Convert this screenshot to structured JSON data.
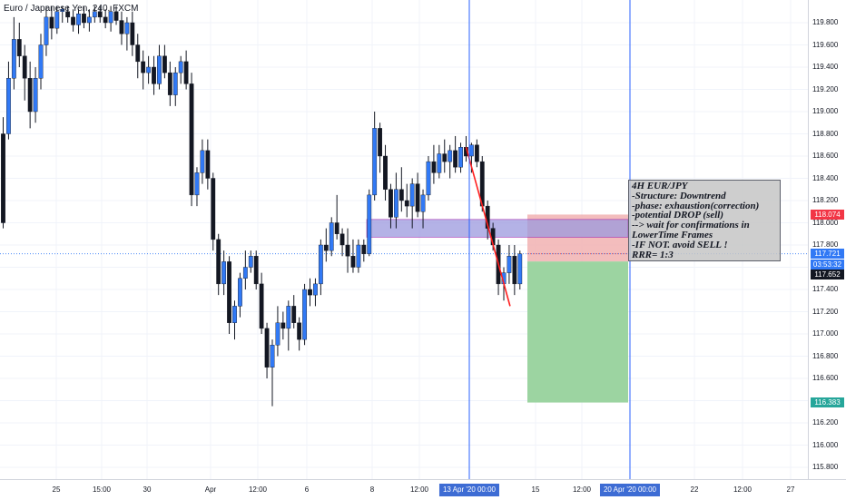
{
  "header": {
    "symbol_title": "Euro / Japanese Yen, 240, FXCM"
  },
  "colors": {
    "up_candle": "#3179f5",
    "down_candle": "#131722",
    "crosshair": "#2962ff",
    "trendline": "#ff1f1f",
    "zone_fill": "#9c99de",
    "stop_fill": "#f2b6b6",
    "target_fill": "#97d29c"
  },
  "price_axis": {
    "ticks": [
      "119.800",
      "119.600",
      "119.400",
      "119.200",
      "119.000",
      "118.800",
      "118.600",
      "118.400",
      "118.200",
      "118.000",
      "117.800",
      "117.600",
      "117.400",
      "117.200",
      "117.000",
      "116.800",
      "116.600",
      "116.400",
      "116.200",
      "116.000",
      "115.800"
    ],
    "badges": {
      "stop": {
        "text": "118.074",
        "color": "#f23645"
      },
      "current": {
        "text": "117.721",
        "color": "#3179f5"
      },
      "countdown": {
        "text": "03:53:32",
        "color": "#3179f5"
      },
      "entry": {
        "text": "117.652",
        "color": "#131722"
      },
      "target": {
        "text": "116.383",
        "color": "#26a69a"
      }
    }
  },
  "time_axis": {
    "ticks": [
      "25",
      "15:00",
      "30",
      "Apr",
      "12:00",
      "6",
      "8",
      "12:00",
      "15",
      "12:00",
      "22",
      "12:00",
      "27"
    ],
    "badge_left": "13 Apr '20   00:00",
    "badge_right": "20 Apr '20   00:00"
  },
  "annotation": {
    "lines": [
      "4H EUR/JPY",
      "-Structure: Downtrend",
      "-phase: exhaustion(correction)",
      "-potential DROP (sell)",
      "--> wait for confirmations in",
      "LowerTime Frames",
      "-IF NOT. avoid SELL !",
      "RRR= 1:3"
    ]
  },
  "chart_data": {
    "type": "candlestick",
    "ylim": [
      115.7,
      119.95
    ],
    "candles": [
      [
        118.8,
        118.95,
        117.95,
        118.0
      ],
      [
        118.8,
        119.45,
        118.75,
        119.3
      ],
      [
        119.3,
        119.85,
        119.2,
        119.65
      ],
      [
        119.65,
        119.8,
        119.4,
        119.5
      ],
      [
        119.5,
        119.6,
        119.1,
        119.3
      ],
      [
        119.3,
        119.45,
        118.85,
        119.0
      ],
      [
        119.0,
        119.4,
        118.9,
        119.3
      ],
      [
        119.3,
        119.7,
        119.2,
        119.6
      ],
      [
        119.6,
        119.95,
        119.5,
        119.85
      ],
      [
        119.85,
        119.95,
        119.65,
        119.75
      ],
      [
        119.75,
        119.95,
        119.7,
        119.9
      ],
      [
        119.9,
        119.95,
        119.8,
        119.92
      ],
      [
        119.9,
        119.95,
        119.8,
        119.85
      ],
      [
        119.85,
        119.92,
        119.72,
        119.78
      ],
      [
        119.78,
        119.92,
        119.7,
        119.88
      ],
      [
        119.88,
        119.95,
        119.75,
        119.8
      ],
      [
        119.8,
        119.92,
        119.72,
        119.85
      ],
      [
        119.85,
        119.95,
        119.8,
        119.9
      ],
      [
        119.9,
        119.95,
        119.8,
        119.85
      ],
      [
        119.85,
        119.92,
        119.75,
        119.8
      ],
      [
        119.8,
        119.95,
        119.72,
        119.9
      ],
      [
        119.9,
        119.95,
        119.78,
        119.82
      ],
      [
        119.82,
        119.9,
        119.6,
        119.7
      ],
      [
        119.7,
        119.85,
        119.55,
        119.8
      ],
      [
        119.8,
        119.9,
        119.5,
        119.6
      ],
      [
        119.6,
        119.7,
        119.3,
        119.45
      ],
      [
        119.45,
        119.55,
        119.2,
        119.35
      ],
      [
        119.35,
        119.5,
        119.25,
        119.4
      ],
      [
        119.4,
        119.5,
        119.15,
        119.25
      ],
      [
        119.25,
        119.6,
        119.2,
        119.5
      ],
      [
        119.5,
        119.6,
        119.3,
        119.35
      ],
      [
        119.35,
        119.45,
        119.05,
        119.15
      ],
      [
        119.15,
        119.4,
        119.05,
        119.35
      ],
      [
        119.35,
        119.5,
        119.25,
        119.45
      ],
      [
        119.45,
        119.55,
        119.2,
        119.25
      ],
      [
        119.25,
        119.35,
        118.15,
        118.25
      ],
      [
        118.25,
        118.5,
        118.15,
        118.45
      ],
      [
        118.45,
        118.75,
        118.35,
        118.65
      ],
      [
        118.65,
        118.75,
        118.3,
        118.4
      ],
      [
        118.4,
        118.45,
        117.75,
        117.85
      ],
      [
        117.85,
        117.9,
        117.35,
        117.45
      ],
      [
        117.45,
        117.75,
        117.35,
        117.65
      ],
      [
        117.65,
        117.7,
        117.0,
        117.1
      ],
      [
        117.1,
        117.3,
        116.95,
        117.25
      ],
      [
        117.25,
        117.55,
        117.15,
        117.5
      ],
      [
        117.5,
        117.75,
        117.4,
        117.6
      ],
      [
        117.6,
        117.75,
        117.55,
        117.7
      ],
      [
        117.7,
        117.75,
        117.4,
        117.45
      ],
      [
        117.45,
        117.55,
        117.0,
        117.05
      ],
      [
        117.05,
        117.1,
        116.6,
        116.7
      ],
      [
        116.7,
        116.95,
        116.35,
        116.9
      ],
      [
        116.9,
        117.25,
        116.8,
        117.1
      ],
      [
        117.1,
        117.2,
        116.95,
        117.05
      ],
      [
        117.05,
        117.3,
        116.85,
        117.25
      ],
      [
        117.25,
        117.35,
        117.05,
        117.1
      ],
      [
        117.1,
        117.15,
        116.85,
        116.95
      ],
      [
        116.95,
        117.45,
        116.9,
        117.4
      ],
      [
        117.4,
        117.5,
        117.25,
        117.35
      ],
      [
        117.35,
        117.5,
        117.25,
        117.45
      ],
      [
        117.45,
        117.85,
        117.35,
        117.8
      ],
      [
        117.8,
        117.95,
        117.65,
        117.75
      ],
      [
        117.75,
        118.05,
        117.7,
        118.0
      ],
      [
        118.0,
        118.25,
        117.85,
        117.9
      ],
      [
        117.9,
        117.95,
        117.7,
        117.8
      ],
      [
        117.8,
        117.95,
        117.55,
        117.7
      ],
      [
        117.7,
        117.85,
        117.55,
        117.6
      ],
      [
        117.6,
        117.85,
        117.55,
        117.8
      ],
      [
        117.8,
        117.85,
        117.65,
        117.72
      ],
      [
        117.72,
        118.3,
        117.7,
        118.25
      ],
      [
        118.25,
        119.0,
        118.2,
        118.85
      ],
      [
        118.85,
        118.9,
        118.45,
        118.6
      ],
      [
        118.6,
        118.7,
        118.2,
        118.3
      ],
      [
        118.3,
        118.35,
        117.95,
        118.05
      ],
      [
        118.05,
        118.45,
        117.95,
        118.3
      ],
      [
        118.3,
        118.5,
        118.1,
        118.2
      ],
      [
        118.2,
        118.35,
        118.05,
        118.15
      ],
      [
        118.15,
        118.4,
        117.95,
        118.35
      ],
      [
        118.35,
        118.45,
        118.05,
        118.1
      ],
      [
        118.1,
        118.3,
        117.95,
        118.25
      ],
      [
        118.25,
        118.6,
        118.2,
        118.55
      ],
      [
        118.55,
        118.7,
        118.35,
        118.45
      ],
      [
        118.45,
        118.7,
        118.4,
        118.62
      ],
      [
        118.62,
        118.75,
        118.45,
        118.55
      ],
      [
        118.55,
        118.7,
        118.4,
        118.65
      ],
      [
        118.65,
        118.78,
        118.45,
        118.5
      ],
      [
        118.5,
        118.72,
        118.45,
        118.68
      ],
      [
        118.68,
        118.78,
        118.55,
        118.6
      ],
      [
        118.6,
        118.72,
        118.45,
        118.7
      ],
      [
        118.7,
        118.75,
        118.5,
        118.55
      ],
      [
        118.55,
        118.6,
        118.1,
        118.15
      ],
      [
        118.15,
        118.2,
        117.85,
        117.95
      ],
      [
        117.95,
        118.0,
        117.75,
        117.8
      ],
      [
        117.8,
        117.85,
        117.35,
        117.45
      ],
      [
        117.45,
        117.6,
        117.3,
        117.55
      ],
      [
        117.55,
        117.8,
        117.45,
        117.7
      ],
      [
        117.7,
        117.8,
        117.35,
        117.45
      ],
      [
        117.45,
        117.75,
        117.4,
        117.72
      ]
    ],
    "trade": {
      "entry": 117.652,
      "stop": 118.074,
      "target": 116.383,
      "current": 117.721
    },
    "zone": {
      "low": 117.87,
      "high": 118.03
    },
    "trendline": {
      "from_index": 86,
      "from_price": 118.68,
      "to_index": 94,
      "to_price": 117.25
    }
  }
}
